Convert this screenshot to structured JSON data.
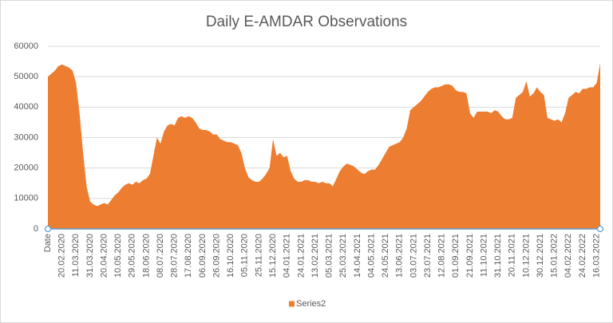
{
  "chart_data": {
    "type": "area",
    "title": "Daily E-AMDAR Observations",
    "series": [
      {
        "name": "Series2",
        "color": "#ed7d31",
        "values": [
          50000,
          51000,
          52000,
          53500,
          54000,
          53500,
          53000,
          52000,
          48000,
          38000,
          25000,
          14000,
          9000,
          8000,
          7500,
          8000,
          8500,
          8000,
          9500,
          11000,
          12000,
          13500,
          14500,
          15000,
          14500,
          15500,
          15000,
          16000,
          16500,
          18000,
          24000,
          30000,
          28000,
          32000,
          34000,
          34500,
          34000,
          36500,
          37000,
          36500,
          37000,
          36500,
          35000,
          33000,
          32500,
          32500,
          32000,
          31000,
          31000,
          29500,
          29000,
          28500,
          28500,
          28000,
          27500,
          25000,
          20000,
          17000,
          16000,
          15500,
          15500,
          16500,
          18000,
          20000,
          29500,
          24000,
          25000,
          23500,
          24000,
          19000,
          16500,
          15500,
          15500,
          16000,
          16000,
          15500,
          15500,
          15000,
          15500,
          15000,
          15000,
          14000,
          16500,
          19000,
          20500,
          21500,
          21000,
          20500,
          19500,
          18500,
          18000,
          19000,
          19500,
          19500,
          21000,
          23000,
          25000,
          27000,
          27500,
          28000,
          28500,
          30000,
          33000,
          39000,
          40000,
          41000,
          42000,
          43500,
          45000,
          46000,
          46500,
          46500,
          47000,
          47500,
          47500,
          47000,
          45500,
          45000,
          45000,
          44500,
          38000,
          36500,
          38500,
          38500,
          38500,
          38500,
          38000,
          39000,
          38500,
          37000,
          36000,
          36000,
          36500,
          43000,
          44000,
          45000,
          48500,
          43500,
          44500,
          46500,
          45000,
          44000,
          36500,
          36000,
          35500,
          36000,
          35000,
          38000,
          43000,
          44000,
          45000,
          44500,
          46000,
          46000,
          46500,
          46500,
          48000,
          54500
        ]
      }
    ],
    "categories": [
      "Date",
      null,
      null,
      null,
      "20.02.2020",
      null,
      null,
      null,
      "11.03.2020",
      null,
      null,
      null,
      "31.03.2020",
      null,
      null,
      null,
      "20.04.2020",
      null,
      null,
      null,
      "10.05.2020",
      null,
      null,
      null,
      "29.05.2020",
      null,
      null,
      null,
      "18.06.2020",
      null,
      null,
      null,
      "08.07.2020",
      null,
      null,
      null,
      "28.07.2020",
      null,
      null,
      null,
      "17.08.2020",
      null,
      null,
      null,
      "06.09.2020",
      null,
      null,
      null,
      "26.09.2020",
      null,
      null,
      null,
      "16.10.2020",
      null,
      null,
      null,
      "05.11.2020",
      null,
      null,
      null,
      "25.11.2020",
      null,
      null,
      null,
      "15.12.2020",
      null,
      null,
      null,
      "04.01.2021",
      null,
      null,
      null,
      "24.01.2021",
      null,
      null,
      null,
      "13.02.2021",
      null,
      null,
      null,
      "05.03.2021",
      null,
      null,
      null,
      "25.03.2021",
      null,
      null,
      null,
      "14.04.2021",
      null,
      null,
      null,
      "04.05.2021",
      null,
      null,
      null,
      "24.05.2021",
      null,
      null,
      null,
      "13.06.2021",
      null,
      null,
      null,
      "03.07.2021",
      null,
      null,
      null,
      "23.07.2021",
      null,
      null,
      null,
      "12.08.2021",
      null,
      null,
      null,
      "01.09.2021",
      null,
      null,
      null,
      "21.09.2021",
      null,
      null,
      null,
      "11.10.2021",
      null,
      null,
      null,
      "31.10.2021",
      null,
      null,
      null,
      "20.11.2021",
      null,
      null,
      null,
      "10.12.2021",
      null,
      null,
      null,
      "30.12.2021",
      null,
      null,
      null,
      "15.01.2022",
      null,
      null,
      null,
      "04.02.2022",
      null,
      null,
      null,
      "24.02.2022",
      null,
      null,
      null,
      "16.03.2022",
      null
    ],
    "ylim": [
      0,
      60000
    ],
    "yticks": [
      0,
      10000,
      20000,
      30000,
      40000,
      50000,
      60000
    ],
    "grid": true,
    "legend": "bottom"
  }
}
